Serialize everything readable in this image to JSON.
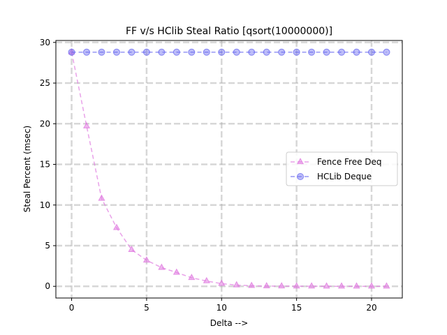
{
  "chart_data": {
    "type": "line",
    "title": "FF v/s HClib Steal Ratio [qsort(10000000)]",
    "xlabel": "Delta -->",
    "ylabel": "Steal Percent (msec)",
    "xlim": [
      -1.05,
      22.05
    ],
    "ylim": [
      -1.44,
      30.24
    ],
    "xticks": [
      0,
      5,
      10,
      15,
      20
    ],
    "yticks": [
      0,
      5,
      10,
      15,
      20,
      25,
      30
    ],
    "grid": true,
    "legend_position": "center-right",
    "x": [
      0,
      1,
      2,
      3,
      4,
      5,
      6,
      7,
      8,
      9,
      10,
      11,
      12,
      13,
      14,
      15,
      16,
      17,
      18,
      19,
      20,
      21
    ],
    "series": [
      {
        "name": "Fence Free Deq",
        "color": "#e07be0",
        "marker": "triangle",
        "values": [
          28.8,
          19.7,
          10.8,
          7.2,
          4.5,
          3.2,
          2.3,
          1.7,
          1.05,
          0.65,
          0.33,
          0.15,
          0.07,
          0.03,
          0.02,
          0.01,
          0.01,
          0.0,
          0.0,
          0.0,
          0.0,
          0.0
        ]
      },
      {
        "name": "HCLib Deque",
        "color": "#6b6bf0",
        "marker": "circle",
        "values": [
          28.8,
          28.8,
          28.8,
          28.8,
          28.8,
          28.8,
          28.8,
          28.8,
          28.8,
          28.8,
          28.8,
          28.8,
          28.8,
          28.8,
          28.8,
          28.8,
          28.8,
          28.8,
          28.8,
          28.8,
          28.8,
          28.8
        ]
      }
    ]
  }
}
